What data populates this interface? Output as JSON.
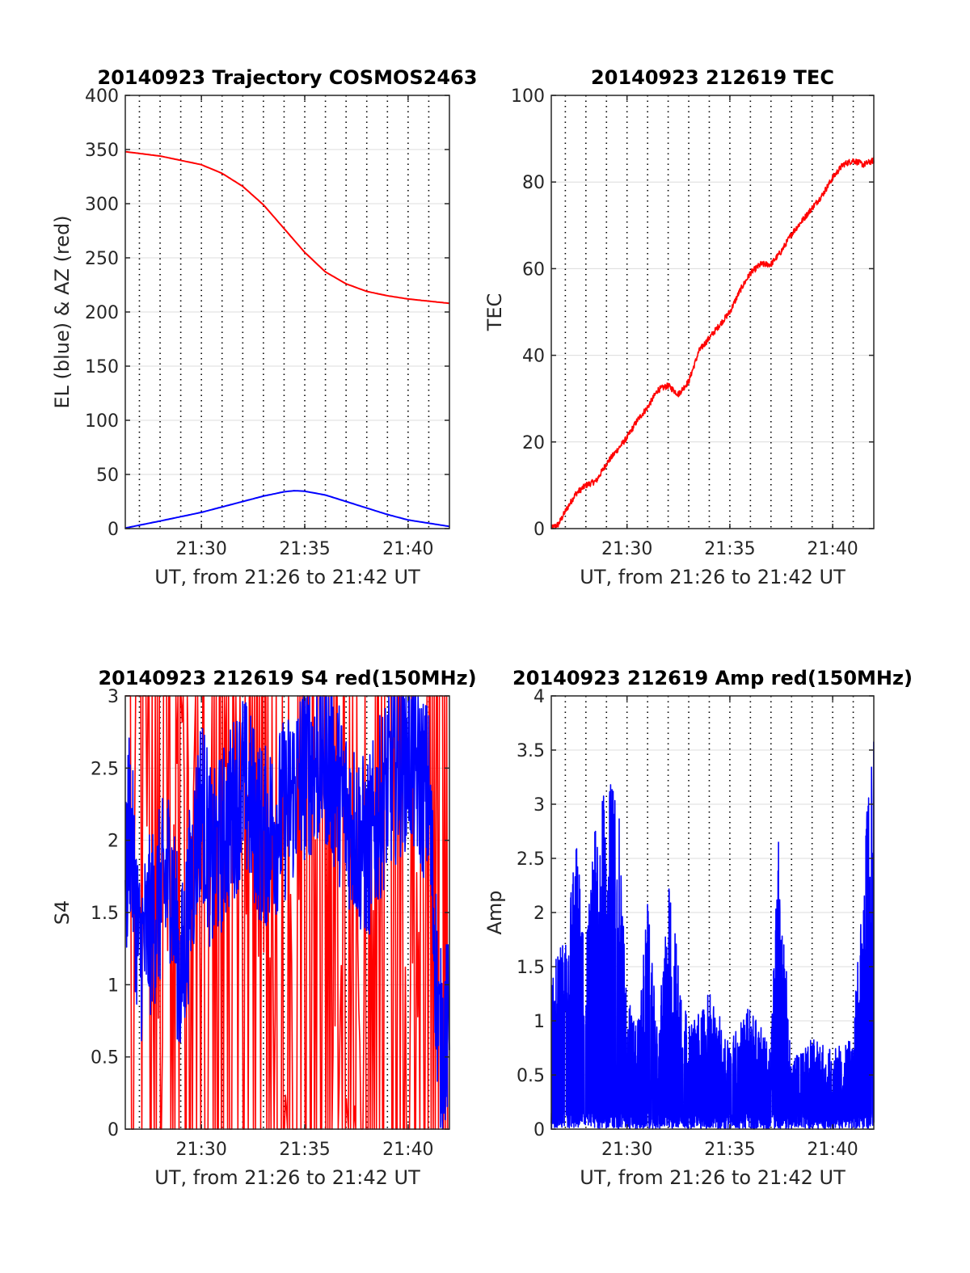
{
  "figure": {
    "time_start": "21:26",
    "time_end": "21:42",
    "colors": {
      "red": "#ff0000",
      "blue": "#0000ff",
      "grid": "#dcdcdc",
      "axis": "#262626"
    }
  },
  "chart_data": [
    {
      "id": "trajectory",
      "type": "line",
      "title": "20140923 Trajectory COSMOS2463",
      "xlabel": "UT, from 21:26 to 21:42 UT",
      "ylabel": "EL (blue) & AZ (red)",
      "xlim": [
        "21:26:19",
        "21:42:00"
      ],
      "ylim": [
        0,
        400
      ],
      "yticks": [
        0,
        50,
        100,
        150,
        200,
        250,
        300,
        350,
        400
      ],
      "xticks": [
        "21:30",
        "21:35",
        "21:40"
      ],
      "grid": true,
      "series": [
        {
          "color": "#ff0000",
          "x": [
            "21:26:19",
            "21:28:00",
            "21:30:00",
            "21:31:00",
            "21:32:00",
            "21:33:00",
            "21:34:00",
            "21:35:00",
            "21:36:00",
            "21:37:00",
            "21:38:00",
            "21:39:00",
            "21:40:00",
            "21:41:00",
            "21:42:00"
          ],
          "values": [
            348,
            344,
            336,
            328,
            316,
            299,
            277,
            255,
            237,
            226,
            219,
            215,
            212,
            210,
            208
          ]
        },
        {
          "color": "#0000ff",
          "x": [
            "21:26:19",
            "21:28:00",
            "21:30:00",
            "21:31:00",
            "21:32:00",
            "21:33:00",
            "21:34:00",
            "21:34:30",
            "21:35:00",
            "21:36:00",
            "21:37:00",
            "21:38:00",
            "21:39:00",
            "21:40:00",
            "21:41:00",
            "21:42:00"
          ],
          "values": [
            0.5,
            7,
            15,
            20,
            25,
            30,
            34,
            35,
            34.5,
            31,
            25,
            19,
            13,
            8,
            5,
            2
          ]
        }
      ]
    },
    {
      "id": "tec",
      "type": "line",
      "title": "20140923 212619 TEC",
      "xlabel": "UT, from 21:26 to 21:42 UT",
      "ylabel": "TEC",
      "xlim": [
        "21:26:19",
        "21:42:00"
      ],
      "ylim": [
        0,
        100
      ],
      "yticks": [
        0,
        20,
        40,
        60,
        80,
        100
      ],
      "xticks": [
        "21:30",
        "21:35",
        "21:40"
      ],
      "grid": true,
      "series": [
        {
          "color": "#ff0000",
          "x": [
            "21:26:19",
            "21:26:40",
            "21:27:00",
            "21:27:30",
            "21:28:00",
            "21:28:30",
            "21:29:00",
            "21:29:30",
            "21:30:00",
            "21:30:30",
            "21:31:00",
            "21:31:30",
            "21:32:00",
            "21:32:30",
            "21:33:00",
            "21:33:30",
            "21:34:00",
            "21:34:30",
            "21:35:00",
            "21:35:30",
            "21:36:00",
            "21:36:30",
            "21:37:00",
            "21:37:30",
            "21:38:00",
            "21:38:30",
            "21:39:00",
            "21:39:30",
            "21:40:00",
            "21:40:30",
            "21:41:00",
            "21:41:30",
            "21:42:00"
          ],
          "values": [
            0,
            1,
            4,
            8,
            10,
            11,
            15,
            18,
            21,
            25,
            28,
            32,
            33,
            31,
            34,
            41,
            44,
            47,
            50,
            55,
            59,
            61,
            61,
            64,
            68,
            71,
            74,
            77,
            81,
            84,
            85,
            84,
            85
          ]
        }
      ]
    },
    {
      "id": "s4",
      "type": "line",
      "title": "20140923 212619 S4 red(150MHz)",
      "xlabel": "UT, from 21:26 to 21:42 UT",
      "ylabel": "S4",
      "xlim": [
        "21:26:19",
        "21:42:00"
      ],
      "ylim": [
        0,
        3
      ],
      "yticks": [
        0,
        0.5,
        1,
        1.5,
        2,
        2.5,
        3
      ],
      "xticks": [
        "21:30",
        "21:35",
        "21:40"
      ],
      "grid": true,
      "series": [
        {
          "color": "#ff0000",
          "x": [
            "21:26:19",
            "21:27:00",
            "21:28:00",
            "21:29:00",
            "21:30:00",
            "21:31:00",
            "21:32:00",
            "21:33:00",
            "21:34:00",
            "21:35:00",
            "21:36:00",
            "21:37:00",
            "21:38:00",
            "21:39:00",
            "21:40:00",
            "21:41:00",
            "21:42:00"
          ],
          "values": [
            1.5,
            3,
            0,
            3,
            1.6,
            3,
            2,
            0.8,
            0,
            3,
            2,
            0,
            1.6,
            3,
            0,
            3,
            0
          ]
        },
        {
          "color": "#0000ff",
          "x": [
            "21:26:19",
            "21:26:30",
            "21:27:00",
            "21:27:30",
            "21:28:00",
            "21:28:30",
            "21:29:00",
            "21:29:30",
            "21:30:00",
            "21:30:30",
            "21:31:00",
            "21:32:00",
            "21:33:00",
            "21:34:00",
            "21:35:00",
            "21:36:00",
            "21:37:00",
            "21:38:00",
            "21:39:00",
            "21:40:00",
            "21:41:00",
            "21:41:30",
            "21:42:00"
          ],
          "values": [
            1.5,
            2.2,
            1.2,
            1.4,
            1.6,
            1.8,
            1.0,
            1.7,
            2.3,
            1.8,
            2.0,
            2.4,
            2.0,
            2.2,
            2.5,
            2.6,
            2.2,
            1.9,
            2.4,
            2.6,
            2.3,
            0.6,
            0.7
          ]
        }
      ]
    },
    {
      "id": "amp",
      "type": "line",
      "title": "20140923 212619 Amp red(150MHz)",
      "xlabel": "UT, from 21:26 to 21:42 UT",
      "ylabel": "Amp",
      "xlim": [
        "21:26:19",
        "21:42:00"
      ],
      "ylim": [
        0,
        4
      ],
      "yticks": [
        0,
        0.5,
        1,
        1.5,
        2,
        2.5,
        3,
        3.5,
        4
      ],
      "xticks": [
        "21:30",
        "21:35",
        "21:40"
      ],
      "grid": true,
      "series": [
        {
          "color": "#0000ff",
          "x": [
            "21:26:19",
            "21:27:00",
            "21:27:30",
            "21:28:00",
            "21:28:30",
            "21:29:00",
            "21:29:30",
            "21:30:00",
            "21:30:30",
            "21:31:00",
            "21:31:30",
            "21:32:00",
            "21:33:00",
            "21:34:00",
            "21:35:00",
            "21:36:00",
            "21:37:00",
            "21:37:20",
            "21:38:00",
            "21:39:00",
            "21:40:00",
            "21:41:00",
            "21:41:30",
            "21:42:00"
          ],
          "values": [
            1.4,
            1.7,
            2.6,
            1.7,
            2.8,
            3.0,
            3.2,
            1.2,
            0.9,
            2.0,
            0.8,
            2.2,
            0.9,
            1.2,
            0.8,
            1.1,
            0.7,
            2.7,
            0.6,
            0.8,
            0.7,
            0.8,
            2.5,
            3.5
          ]
        }
      ]
    }
  ]
}
